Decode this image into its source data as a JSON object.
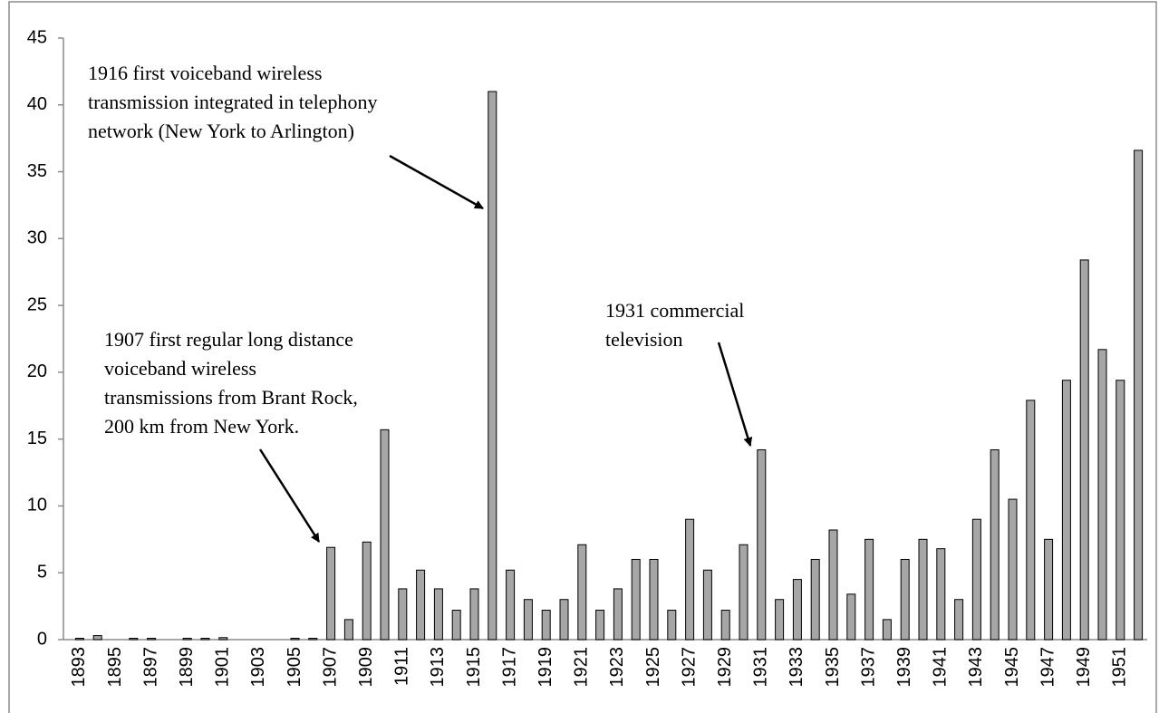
{
  "chart_data": {
    "type": "bar",
    "categories": [
      "1893",
      null,
      "1895",
      null,
      "1897",
      null,
      "1899",
      null,
      "1901",
      null,
      "1903",
      null,
      "1905",
      null,
      "1907",
      null,
      "1909",
      null,
      "1911",
      null,
      "1913",
      null,
      "1915",
      null,
      "1917",
      null,
      "1919",
      null,
      "1921",
      null,
      "1923",
      null,
      "1925",
      null,
      "1927",
      null,
      "1929",
      null,
      "1931",
      null,
      "1933",
      null,
      "1935",
      null,
      "1937",
      null,
      "1939",
      null,
      "1941",
      null,
      "1943",
      null,
      "1945",
      null,
      "1947",
      null,
      "1949",
      null,
      "1951",
      null
    ],
    "values": [
      0.1,
      0.3,
      0,
      0.1,
      0.1,
      0,
      0.1,
      0.1,
      0.15,
      0,
      0,
      0,
      0.1,
      0.1,
      6.9,
      1.5,
      7.3,
      15.7,
      3.8,
      5.2,
      3.8,
      2.2,
      3.8,
      41,
      5.2,
      3,
      2.2,
      3,
      7.1,
      2.2,
      3.8,
      6,
      6,
      2.2,
      9,
      5.2,
      2.2,
      7.1,
      14.2,
      3,
      4.5,
      6,
      8.2,
      3.4,
      7.5,
      1.5,
      6,
      7.5,
      6.8,
      3,
      9,
      14.2,
      10.5,
      17.9,
      7.5,
      19.4,
      28.4,
      21.7,
      19.4,
      36.6
    ],
    "color": "#a6a6a6",
    "ylim": [
      0,
      45
    ],
    "yticks": [
      0,
      5,
      10,
      15,
      20,
      25,
      30,
      35,
      40,
      45
    ],
    "grid": false,
    "annotations": [
      {
        "lines": [
          "1916 first voiceband wireless",
          "transmission integrated in telephony",
          "network (New York to Arlington)"
        ]
      },
      {
        "lines": [
          "1931 commercial",
          "television"
        ]
      },
      {
        "lines": [
          "1907 first regular long distance",
          "voiceband wireless",
          "transmissions from Brant Rock,",
          "200 km from New York."
        ]
      }
    ]
  }
}
